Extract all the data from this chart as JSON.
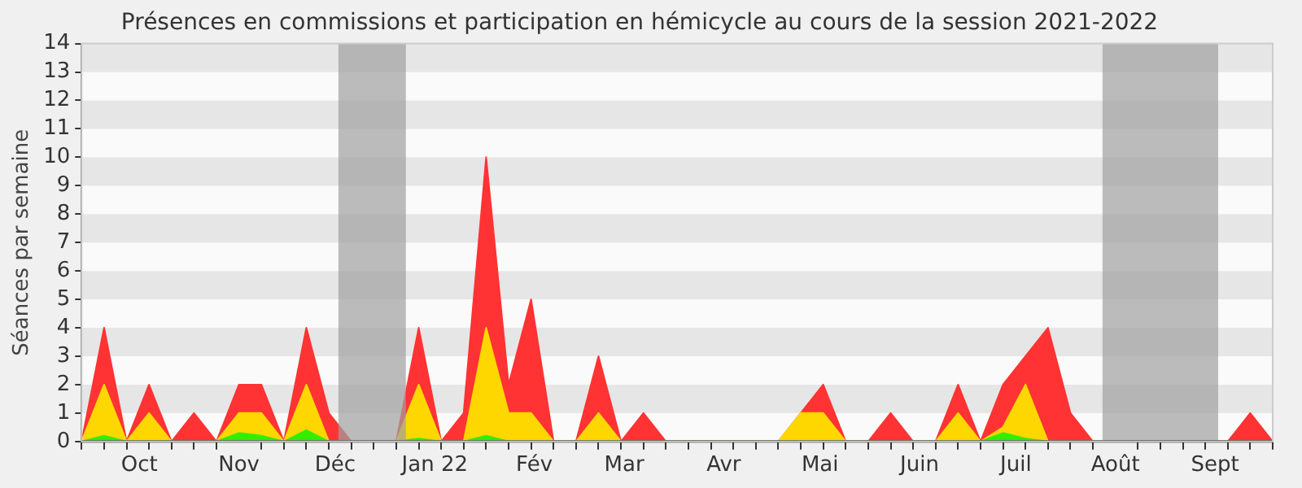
{
  "chart_data": {
    "type": "area",
    "title": "Présences en commissions et participation en hémicycle au cours de la session 2021-2022",
    "ylabel": "Séances par semaine",
    "x": [
      "2021-09-13",
      "2021-09-20",
      "2021-09-27",
      "2021-10-04",
      "2021-10-11",
      "2021-10-18",
      "2021-10-25",
      "2021-11-01",
      "2021-11-08",
      "2021-11-15",
      "2021-11-22",
      "2021-11-29",
      "2021-12-06",
      "2021-12-13",
      "2021-12-20",
      "2021-12-27",
      "2022-01-03",
      "2022-01-10",
      "2022-01-17",
      "2022-01-24",
      "2022-01-31",
      "2022-02-07",
      "2022-02-14",
      "2022-02-21",
      "2022-02-28",
      "2022-03-07",
      "2022-03-14",
      "2022-03-21",
      "2022-03-28",
      "2022-04-04",
      "2022-04-11",
      "2022-04-18",
      "2022-04-25",
      "2022-05-02",
      "2022-05-09",
      "2022-05-16",
      "2022-05-23",
      "2022-05-30",
      "2022-06-06",
      "2022-06-13",
      "2022-06-20",
      "2022-06-27",
      "2022-07-04",
      "2022-07-11",
      "2022-07-18",
      "2022-07-25",
      "2022-08-01",
      "2022-08-08",
      "2022-08-15",
      "2022-08-22",
      "2022-08-29",
      "2022-09-05",
      "2022-09-12",
      "2022-09-19"
    ],
    "series": [
      {
        "color": "#ff3333",
        "values": [
          0,
          4,
          0,
          2,
          0,
          1,
          0,
          2,
          2,
          0,
          4,
          1,
          0,
          0,
          0,
          4,
          0,
          1,
          10,
          2,
          5,
          0,
          0,
          3,
          0,
          1,
          0,
          0,
          0,
          0,
          0,
          0,
          1,
          2,
          0,
          0,
          1,
          0,
          0,
          2,
          0,
          2,
          3,
          4,
          1,
          0,
          0,
          0,
          0,
          0,
          0,
          0,
          1,
          0
        ]
      },
      {
        "color": "#ffd700",
        "values": [
          0,
          2,
          0,
          1,
          0,
          0,
          0,
          1,
          1,
          0,
          2,
          0,
          0,
          0,
          0,
          2,
          0,
          0,
          4,
          1,
          1,
          0,
          0,
          1,
          0,
          0,
          0,
          0,
          0,
          0,
          0,
          0,
          1,
          1,
          0,
          0,
          0,
          0,
          0,
          1,
          0,
          0.5,
          2,
          0,
          0,
          0,
          0,
          0,
          0,
          0,
          0,
          0,
          0,
          0
        ]
      },
      {
        "color": "#33ee00",
        "values": [
          0,
          0.2,
          0,
          0,
          0,
          0,
          0,
          0.3,
          0.2,
          0,
          0.4,
          0,
          0,
          0,
          0,
          0.1,
          0,
          0,
          0.2,
          0,
          0,
          0,
          0,
          0,
          0,
          0,
          0,
          0,
          0,
          0,
          0,
          0,
          0,
          0,
          0,
          0,
          0,
          0,
          0,
          0,
          0,
          0.3,
          0.1,
          0,
          0,
          0,
          0,
          0,
          0,
          0,
          0,
          0,
          0,
          0
        ]
      }
    ],
    "xlim": [
      "2021-09-13",
      "2022-09-19"
    ],
    "xticks": [
      {
        "value": "2021-09-13",
        "label": null
      },
      {
        "value": "2021-09-20",
        "label": null
      },
      {
        "value": "2021-09-27",
        "label": null
      },
      {
        "value": "2021-10-01",
        "label": "Oct"
      },
      {
        "value": "2021-10-04",
        "label": null
      },
      {
        "value": "2021-10-11",
        "label": null
      },
      {
        "value": "2021-10-18",
        "label": null
      },
      {
        "value": "2021-10-25",
        "label": null
      },
      {
        "value": "2021-11-01",
        "label": "Nov"
      },
      {
        "value": "2021-11-08",
        "label": null
      },
      {
        "value": "2021-11-15",
        "label": null
      },
      {
        "value": "2021-11-22",
        "label": null
      },
      {
        "value": "2021-11-29",
        "label": null
      },
      {
        "value": "2021-12-01",
        "label": "Déc"
      },
      {
        "value": "2021-12-06",
        "label": null
      },
      {
        "value": "2021-12-13",
        "label": null
      },
      {
        "value": "2021-12-20",
        "label": null
      },
      {
        "value": "2021-12-27",
        "label": null
      },
      {
        "value": "2022-01-01",
        "label": "Jan 22"
      },
      {
        "value": "2022-01-03",
        "label": null
      },
      {
        "value": "2022-01-10",
        "label": null
      },
      {
        "value": "2022-01-17",
        "label": null
      },
      {
        "value": "2022-01-24",
        "label": null
      },
      {
        "value": "2022-01-31",
        "label": null
      },
      {
        "value": "2022-02-01",
        "label": "Fév"
      },
      {
        "value": "2022-02-07",
        "label": null
      },
      {
        "value": "2022-02-14",
        "label": null
      },
      {
        "value": "2022-02-21",
        "label": null
      },
      {
        "value": "2022-02-28",
        "label": null
      },
      {
        "value": "2022-03-01",
        "label": "Mar"
      },
      {
        "value": "2022-03-07",
        "label": null
      },
      {
        "value": "2022-03-14",
        "label": null
      },
      {
        "value": "2022-03-21",
        "label": null
      },
      {
        "value": "2022-03-28",
        "label": null
      },
      {
        "value": "2022-04-01",
        "label": "Avr"
      },
      {
        "value": "2022-04-04",
        "label": null
      },
      {
        "value": "2022-04-11",
        "label": null
      },
      {
        "value": "2022-04-18",
        "label": null
      },
      {
        "value": "2022-04-25",
        "label": null
      },
      {
        "value": "2022-05-01",
        "label": "Mai"
      },
      {
        "value": "2022-05-02",
        "label": null
      },
      {
        "value": "2022-05-09",
        "label": null
      },
      {
        "value": "2022-05-16",
        "label": null
      },
      {
        "value": "2022-05-23",
        "label": null
      },
      {
        "value": "2022-05-30",
        "label": null
      },
      {
        "value": "2022-06-01",
        "label": "Juin"
      },
      {
        "value": "2022-06-06",
        "label": null
      },
      {
        "value": "2022-06-13",
        "label": null
      },
      {
        "value": "2022-06-20",
        "label": null
      },
      {
        "value": "2022-06-27",
        "label": null
      },
      {
        "value": "2022-07-01",
        "label": "Juil"
      },
      {
        "value": "2022-07-04",
        "label": null
      },
      {
        "value": "2022-07-11",
        "label": null
      },
      {
        "value": "2022-07-18",
        "label": null
      },
      {
        "value": "2022-07-25",
        "label": null
      },
      {
        "value": "2022-08-01",
        "label": "Août"
      },
      {
        "value": "2022-08-08",
        "label": null
      },
      {
        "value": "2022-08-15",
        "label": null
      },
      {
        "value": "2022-08-22",
        "label": null
      },
      {
        "value": "2022-08-29",
        "label": null
      },
      {
        "value": "2022-09-01",
        "label": "Sept"
      },
      {
        "value": "2022-09-05",
        "label": null
      },
      {
        "value": "2022-09-12",
        "label": null
      },
      {
        "value": "2022-09-19",
        "label": null
      }
    ],
    "ylim": [
      0,
      14
    ],
    "yticks": [
      0,
      1,
      2,
      3,
      4,
      5,
      6,
      7,
      8,
      9,
      10,
      11,
      12,
      13,
      14
    ],
    "bands": [
      {
        "axis": "x",
        "from": "2021-12-02",
        "to": "2021-12-23",
        "color": "#a0a0a0"
      },
      {
        "axis": "x",
        "from": "2022-07-28",
        "to": "2022-09-02",
        "color": "#a0a0a0"
      }
    ]
  }
}
